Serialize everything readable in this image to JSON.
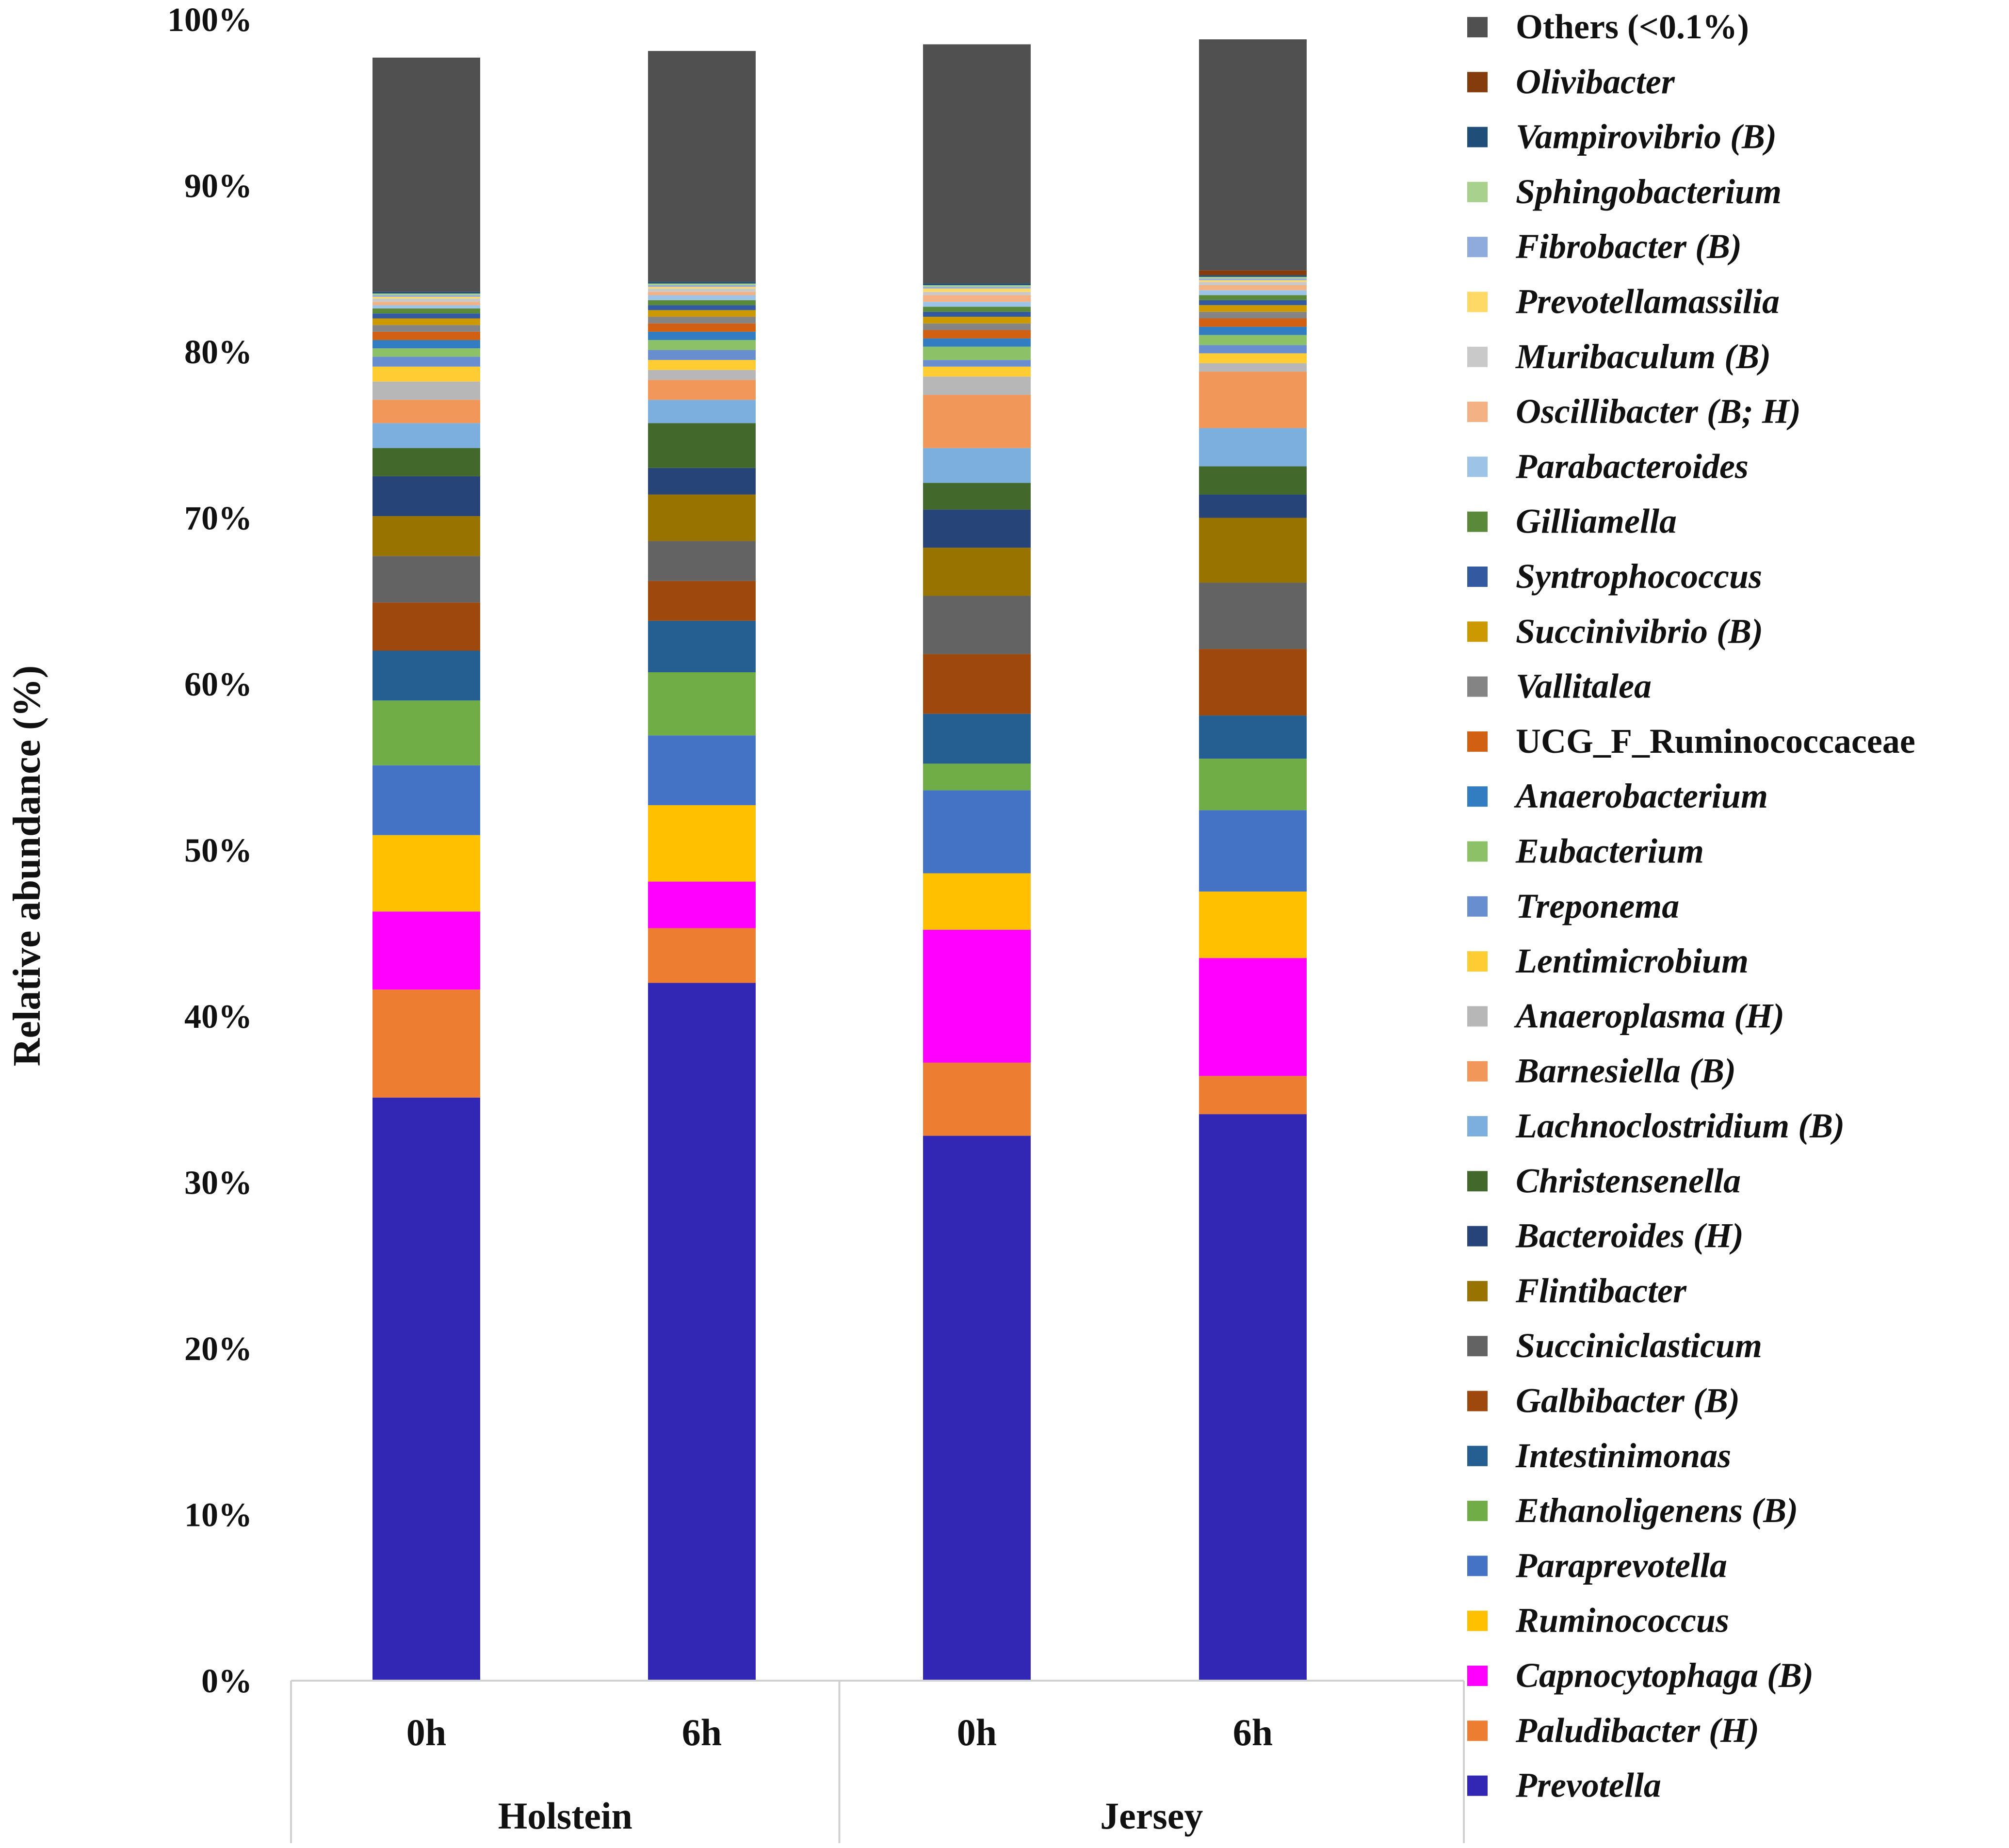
{
  "chart_data": {
    "type": "stacked-bar",
    "ylabel": "Relative abundance  (%)",
    "ylim": [
      0,
      100
    ],
    "yticks": [
      "0%",
      "10%",
      "20%",
      "30%",
      "40%",
      "50%",
      "60%",
      "70%",
      "80%",
      "90%",
      "100%"
    ],
    "categories": [
      "0h",
      "6h",
      "0h",
      "6h"
    ],
    "groups": [
      {
        "label": "Holstein",
        "span": [
          0,
          1
        ]
      },
      {
        "label": "Jersey",
        "span": [
          2,
          3
        ]
      }
    ],
    "series": [
      {
        "name": "Prevotella",
        "color": "#3226B4",
        "italic": true,
        "values": [
          35.1,
          42.0,
          32.8,
          34.1
        ]
      },
      {
        "name": "Paludibacter (H)",
        "color": "#ED7D31",
        "italic": true,
        "values": [
          6.5,
          3.3,
          4.4,
          2.3
        ]
      },
      {
        "name": "Capnocytophaga (B)",
        "color": "#FF00FF",
        "italic": true,
        "values": [
          4.7,
          2.8,
          8.0,
          7.1
        ]
      },
      {
        "name": "Ruminococcus",
        "color": "#FFC000",
        "italic": true,
        "values": [
          4.6,
          4.6,
          3.4,
          4.0
        ]
      },
      {
        "name": "Paraprevotella",
        "color": "#4472C4",
        "italic": true,
        "values": [
          4.2,
          4.2,
          5.0,
          4.9
        ]
      },
      {
        "name": "Ethanoligenens (B)",
        "color": "#70AD47",
        "italic": true,
        "values": [
          3.9,
          3.8,
          1.6,
          3.1
        ]
      },
      {
        "name": "Intestinimonas",
        "color": "#255E91",
        "italic": true,
        "values": [
          3.0,
          3.1,
          3.0,
          2.6
        ]
      },
      {
        "name": "Galbibacter (B)",
        "color": "#9E480E",
        "italic": true,
        "values": [
          2.9,
          2.4,
          3.6,
          4.0
        ]
      },
      {
        "name": "Succiniclasticum",
        "color": "#636363",
        "italic": true,
        "values": [
          2.8,
          2.4,
          3.5,
          4.0
        ]
      },
      {
        "name": "Flintibacter",
        "color": "#997300",
        "italic": true,
        "values": [
          2.4,
          2.8,
          2.9,
          3.9
        ]
      },
      {
        "name": "Bacteroides (H)",
        "color": "#264478",
        "italic": true,
        "values": [
          2.4,
          1.6,
          2.3,
          1.4
        ]
      },
      {
        "name": "Christensenella",
        "color": "#43682B",
        "italic": true,
        "values": [
          1.7,
          2.7,
          1.6,
          1.7
        ]
      },
      {
        "name": "Lachnoclostridium (B)",
        "color": "#7CAFDD",
        "italic": true,
        "values": [
          1.5,
          1.4,
          2.1,
          2.3
        ]
      },
      {
        "name": "Barnesiella (B)",
        "color": "#F1975A",
        "italic": true,
        "values": [
          1.4,
          1.2,
          3.2,
          3.4
        ]
      },
      {
        "name": "Anaeroplasma (H)",
        "color": "#B7B7B7",
        "italic": true,
        "values": [
          1.1,
          0.6,
          1.1,
          0.5
        ]
      },
      {
        "name": "Lentimicrobium",
        "color": "#FFCD33",
        "italic": true,
        "values": [
          0.9,
          0.6,
          0.6,
          0.6
        ]
      },
      {
        "name": "Treponema",
        "color": "#698ED0",
        "italic": true,
        "values": [
          0.6,
          0.6,
          0.4,
          0.5
        ]
      },
      {
        "name": "Eubacterium",
        "color": "#8CC168",
        "italic": true,
        "values": [
          0.5,
          0.6,
          0.8,
          0.6
        ]
      },
      {
        "name": "Anaerobacterium",
        "color": "#327DC2",
        "italic": true,
        "values": [
          0.5,
          0.5,
          0.5,
          0.5
        ]
      },
      {
        "name": "UCG_F_Ruminococcaceae",
        "color": "#D26012",
        "italic": false,
        "values": [
          0.5,
          0.5,
          0.5,
          0.5
        ]
      },
      {
        "name": "Vallitalea",
        "color": "#848484",
        "italic": true,
        "values": [
          0.4,
          0.4,
          0.4,
          0.4
        ]
      },
      {
        "name": "Succinivibrio (B)",
        "color": "#CC9A00",
        "italic": true,
        "values": [
          0.4,
          0.4,
          0.4,
          0.4
        ]
      },
      {
        "name": "Syntrophococcus",
        "color": "#335AA1",
        "italic": true,
        "values": [
          0.3,
          0.3,
          0.3,
          0.3
        ]
      },
      {
        "name": "Gilliamella",
        "color": "#5A8A39",
        "italic": true,
        "values": [
          0.3,
          0.3,
          0.3,
          0.3
        ]
      },
      {
        "name": "Parabacteroides",
        "color": "#9DC3E6",
        "italic": true,
        "values": [
          0.2,
          0.3,
          0.3,
          0.3
        ]
      },
      {
        "name": "Oscillibacter (B; H)",
        "color": "#F4B183",
        "italic": true,
        "values": [
          0.2,
          0.2,
          0.4,
          0.3
        ]
      },
      {
        "name": "Muribaculum (B)",
        "color": "#C9C9C9",
        "italic": true,
        "values": [
          0.2,
          0.2,
          0.2,
          0.2
        ]
      },
      {
        "name": "Prevotellamassilia",
        "color": "#FFD966",
        "italic": true,
        "values": [
          0.1,
          0.1,
          0.2,
          0.1
        ]
      },
      {
        "name": "Fibrobacter (B)",
        "color": "#8FAADC",
        "italic": true,
        "values": [
          0.1,
          0.1,
          0.1,
          0.1
        ]
      },
      {
        "name": "Sphingobacterium",
        "color": "#A9D18E",
        "italic": true,
        "values": [
          0.1,
          0.1,
          0.1,
          0.1
        ]
      },
      {
        "name": "Vampirovibrio (B)",
        "color": "#1F4E79",
        "italic": true,
        "values": [
          0.1,
          0.1,
          0.1,
          0.1
        ]
      },
      {
        "name": "Olivibacter",
        "color": "#843C0C",
        "italic": true,
        "values": [
          0.0,
          0.0,
          0.0,
          0.3
        ]
      },
      {
        "name": "Others (<0.1%)",
        "color": "#505050",
        "italic": false,
        "values": [
          14.1,
          13.9,
          14.4,
          13.9
        ]
      }
    ]
  }
}
